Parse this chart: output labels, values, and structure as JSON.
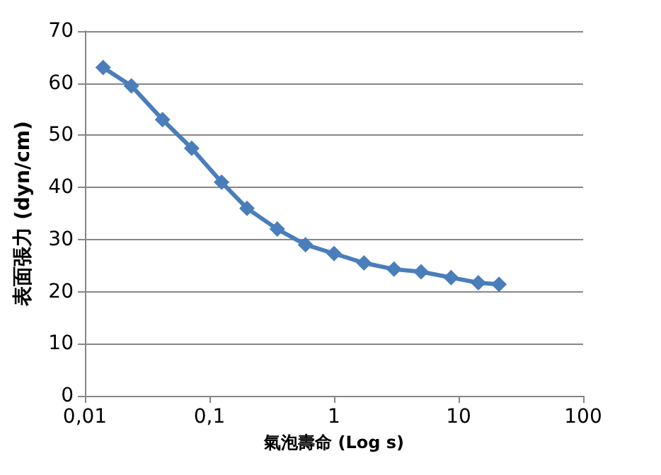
{
  "chart_data": {
    "type": "line",
    "xlabel": "氣泡壽命 (Log s)",
    "ylabel": "表面張力 (dyn/cm)",
    "x": [
      0.014,
      0.0236,
      0.042,
      0.072,
      0.125,
      0.2,
      0.35,
      0.59,
      1.0,
      1.74,
      3.03,
      5.0,
      8.7,
      14.4,
      21.1
    ],
    "series": [
      {
        "color": "#4a7ebb",
        "values": [
          63,
          59.5,
          53,
          47.5,
          41,
          36,
          32,
          29,
          27.3,
          25.5,
          24.3,
          23.8,
          22.7,
          21.7,
          21.4
        ]
      }
    ],
    "log": "x",
    "xlim": [
      0.01,
      100
    ],
    "xticks": [
      {
        "value": 0.01,
        "label": "0,01"
      },
      {
        "value": 0.1,
        "label": "0,1"
      },
      1,
      10,
      100
    ],
    "ylim": [
      0,
      70
    ],
    "yticks": [
      0,
      10,
      20,
      30,
      40,
      50,
      60,
      70
    ],
    "grid": "y",
    "marker": "diamond",
    "line_style": "solid"
  }
}
